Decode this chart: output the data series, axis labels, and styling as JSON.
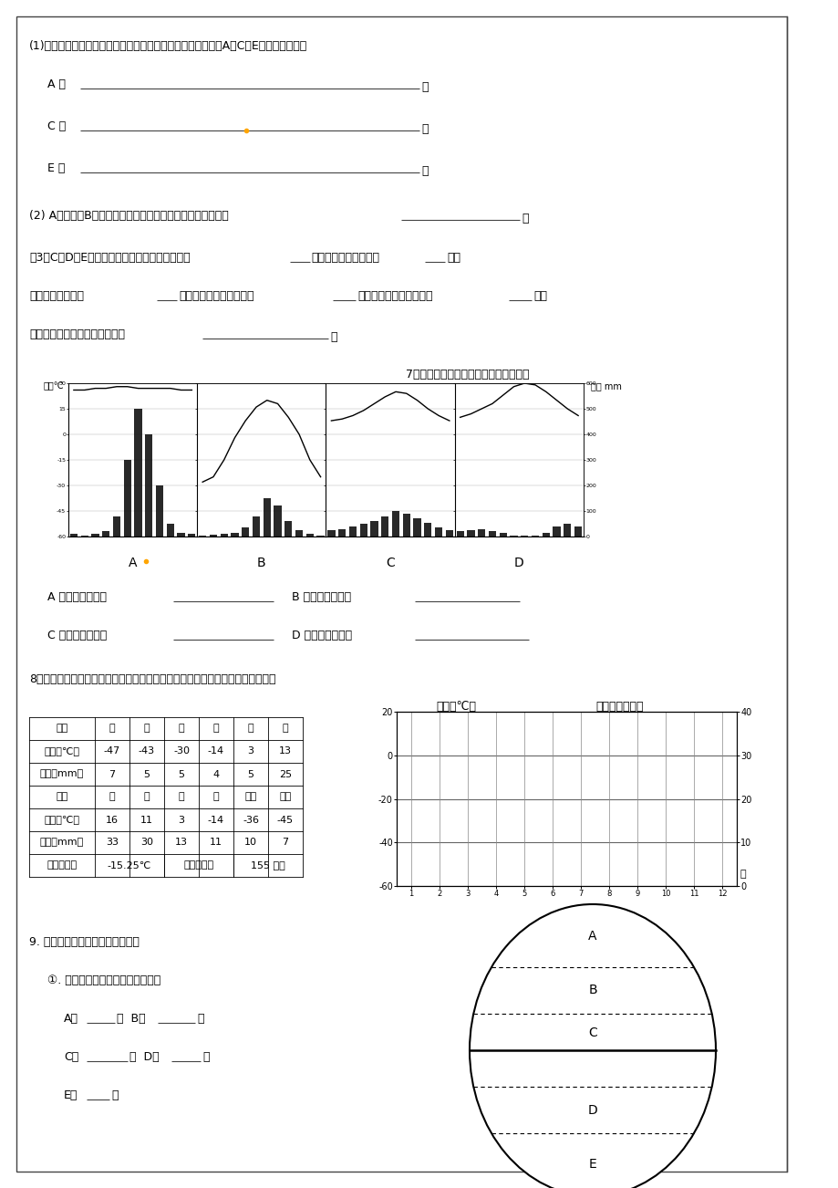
{
  "bg_color": "#ffffff",
  "page_width": 9.2,
  "page_height": 13.02,
  "q1": "(1)根据图中不同位置的气温变化曲线和各月降水柱状图，描述A、C、E三地气候特征：",
  "lineA": "A 地",
  "lineC": "C 地",
  "lineE": "E 地",
  "q2": "(2) A地气候与B地差异很大，影响liang地气候差异的主要因素是",
  "q2_end": "。",
  "q3a": "（3）C、D、E三地比较，降水季节变化最大的是    地，降水各月均匀的是    地，",
  "q3b": "年降水量较少的是    地；气温年较差最小的是     地，气温年较差最大的是     地；",
  "q3c": "造成三地气候差异的主要因素是",
  "q3c_end": "。",
  "q7_title": "7．写出下列四张气候坐标图的气候类型",
  "qA_ans": "A 图的气候类型是",
  "qB_ans": "B 图的气候类型是",
  "qC_ans": "C 图的气候类型是",
  "qD_ans": "D 图的气候类型是",
  "q8": "8．请根据下表气候资料，在右面的坐标图中，绘制一幅气温曲线和降水柱状图。",
  "q8_temp_label": "气温（℃）",
  "q8_precip_label": "降水量（毫米）",
  "q9": "9. 读五带示意图（右图）回答问题",
  "q9_1": "①． 根据图中字母填写地球上的五带",
  "q9_A": "A．    带  B．     带",
  "q9_C": "C．      带  D．     带",
  "q9_E": "E．    带",
  "temp_ylabel": "气温℃",
  "precip_ylabel": "降水 mm",
  "months_zh_1": [
    "月份",
    "一",
    "二",
    "三",
    "四",
    "五",
    "六"
  ],
  "temp_row_1": [
    "气温（℃）",
    "-47",
    "-43",
    "-30",
    "-14",
    "3",
    "13"
  ],
  "precip_row_1": [
    "降水（mm）",
    "7",
    "5",
    "5",
    "4",
    "5",
    "25"
  ],
  "months_zh_2": [
    "月份",
    "七",
    "八",
    "九",
    "十",
    "十一",
    "十二"
  ],
  "temp_row_2": [
    "气温（℃）",
    "16",
    "11",
    "3",
    "-14",
    "-36",
    "-45"
  ],
  "precip_row_2": [
    "降水（mm）",
    "33",
    "30",
    "13",
    "11",
    "10",
    "7"
  ],
  "avg_row": [
    "年平均气温",
    "-15.25℃",
    "年总降水量",
    "155 毫米"
  ],
  "orange_dot_color": "#FFA500"
}
